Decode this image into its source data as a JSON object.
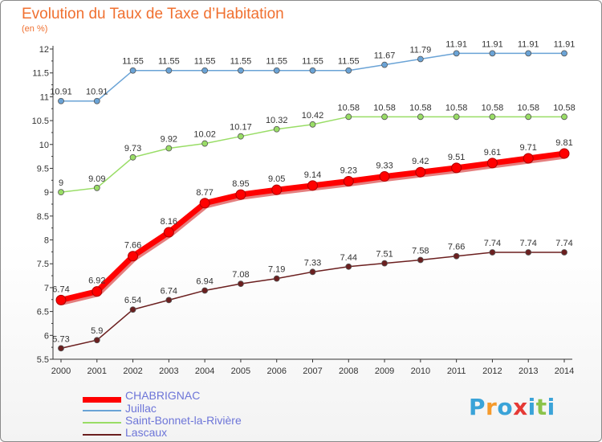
{
  "title": "Evolution du Taux de Taxe d’Habitation",
  "unit_label": "(en %)",
  "logo": {
    "text": "Proxiti",
    "letters": [
      "P",
      "r",
      "o",
      "x",
      "i",
      "t",
      "i"
    ],
    "letter_colors": [
      "#3aa3d8",
      "#f59a2c",
      "#3aa3d8",
      "#e53935",
      "#3aa3d8",
      "#8bc34a",
      "#3aa3d8"
    ]
  },
  "chart_data": {
    "type": "line",
    "x": [
      "2000",
      "2001",
      "2002",
      "2003",
      "2004",
      "2005",
      "2006",
      "2007",
      "2008",
      "2009",
      "2010",
      "2011",
      "2012",
      "2013",
      "2014"
    ],
    "ylim": [
      5.5,
      12
    ],
    "yticks": [
      "5.5",
      "6",
      "6.5",
      "7",
      "7.5",
      "8",
      "8.5",
      "9",
      "9.5",
      "10",
      "10.5",
      "11",
      "11.5",
      "12"
    ],
    "grid": false,
    "series": [
      {
        "name": "CHABRIGNAC",
        "color": "#ff0000",
        "emphasis": true,
        "values": [
          6.74,
          6.92,
          7.66,
          8.16,
          8.77,
          8.95,
          9.05,
          9.14,
          9.23,
          9.33,
          9.42,
          9.51,
          9.61,
          9.71,
          9.81
        ],
        "labels": [
          "6.74",
          "6.92",
          "7.66",
          "8.16",
          "8.77",
          "8.95",
          "9.05",
          "9.14",
          "9.23",
          "9.33",
          "9.42",
          "9.51",
          "9.61",
          "9.71",
          "9.81"
        ]
      },
      {
        "name": "Juillac",
        "color": "#6aa3d6",
        "emphasis": false,
        "values": [
          10.91,
          10.91,
          11.55,
          11.55,
          11.55,
          11.55,
          11.55,
          11.55,
          11.55,
          11.67,
          11.79,
          11.91,
          11.91,
          11.91,
          11.91
        ],
        "labels": [
          "10.91",
          "10.91",
          "11.55",
          "11.55",
          "11.55",
          "11.55",
          "11.55",
          "11.55",
          "11.55",
          "11.67",
          "11.79",
          "11.91",
          "11.91",
          "11.91",
          "11.91"
        ]
      },
      {
        "name": "Saint-Bonnet-la-Rivière",
        "color": "#99dd66",
        "emphasis": false,
        "values": [
          9,
          9.09,
          9.73,
          9.92,
          10.02,
          10.17,
          10.32,
          10.42,
          10.58,
          10.58,
          10.58,
          10.58,
          10.58,
          10.58,
          10.58
        ],
        "labels": [
          "9",
          "9.09",
          "9.73",
          "9.92",
          "10.02",
          "10.17",
          "10.32",
          "10.42",
          "10.58",
          "10.58",
          "10.58",
          "10.58",
          "10.58",
          "10.58",
          "10.58"
        ]
      },
      {
        "name": "Lascaux",
        "color": "#6b1f1f",
        "emphasis": false,
        "values": [
          5.73,
          5.9,
          6.54,
          6.74,
          6.94,
          7.08,
          7.19,
          7.33,
          7.44,
          7.51,
          7.58,
          7.66,
          7.74,
          7.74,
          7.74
        ],
        "labels": [
          "5.73",
          "5.9",
          "6.54",
          "6.74",
          "6.94",
          "7.08",
          "7.19",
          "7.33",
          "7.44",
          "7.51",
          "7.58",
          "7.66",
          "7.74",
          "7.74",
          "7.74"
        ]
      }
    ],
    "legend_position": "bottom-left"
  }
}
